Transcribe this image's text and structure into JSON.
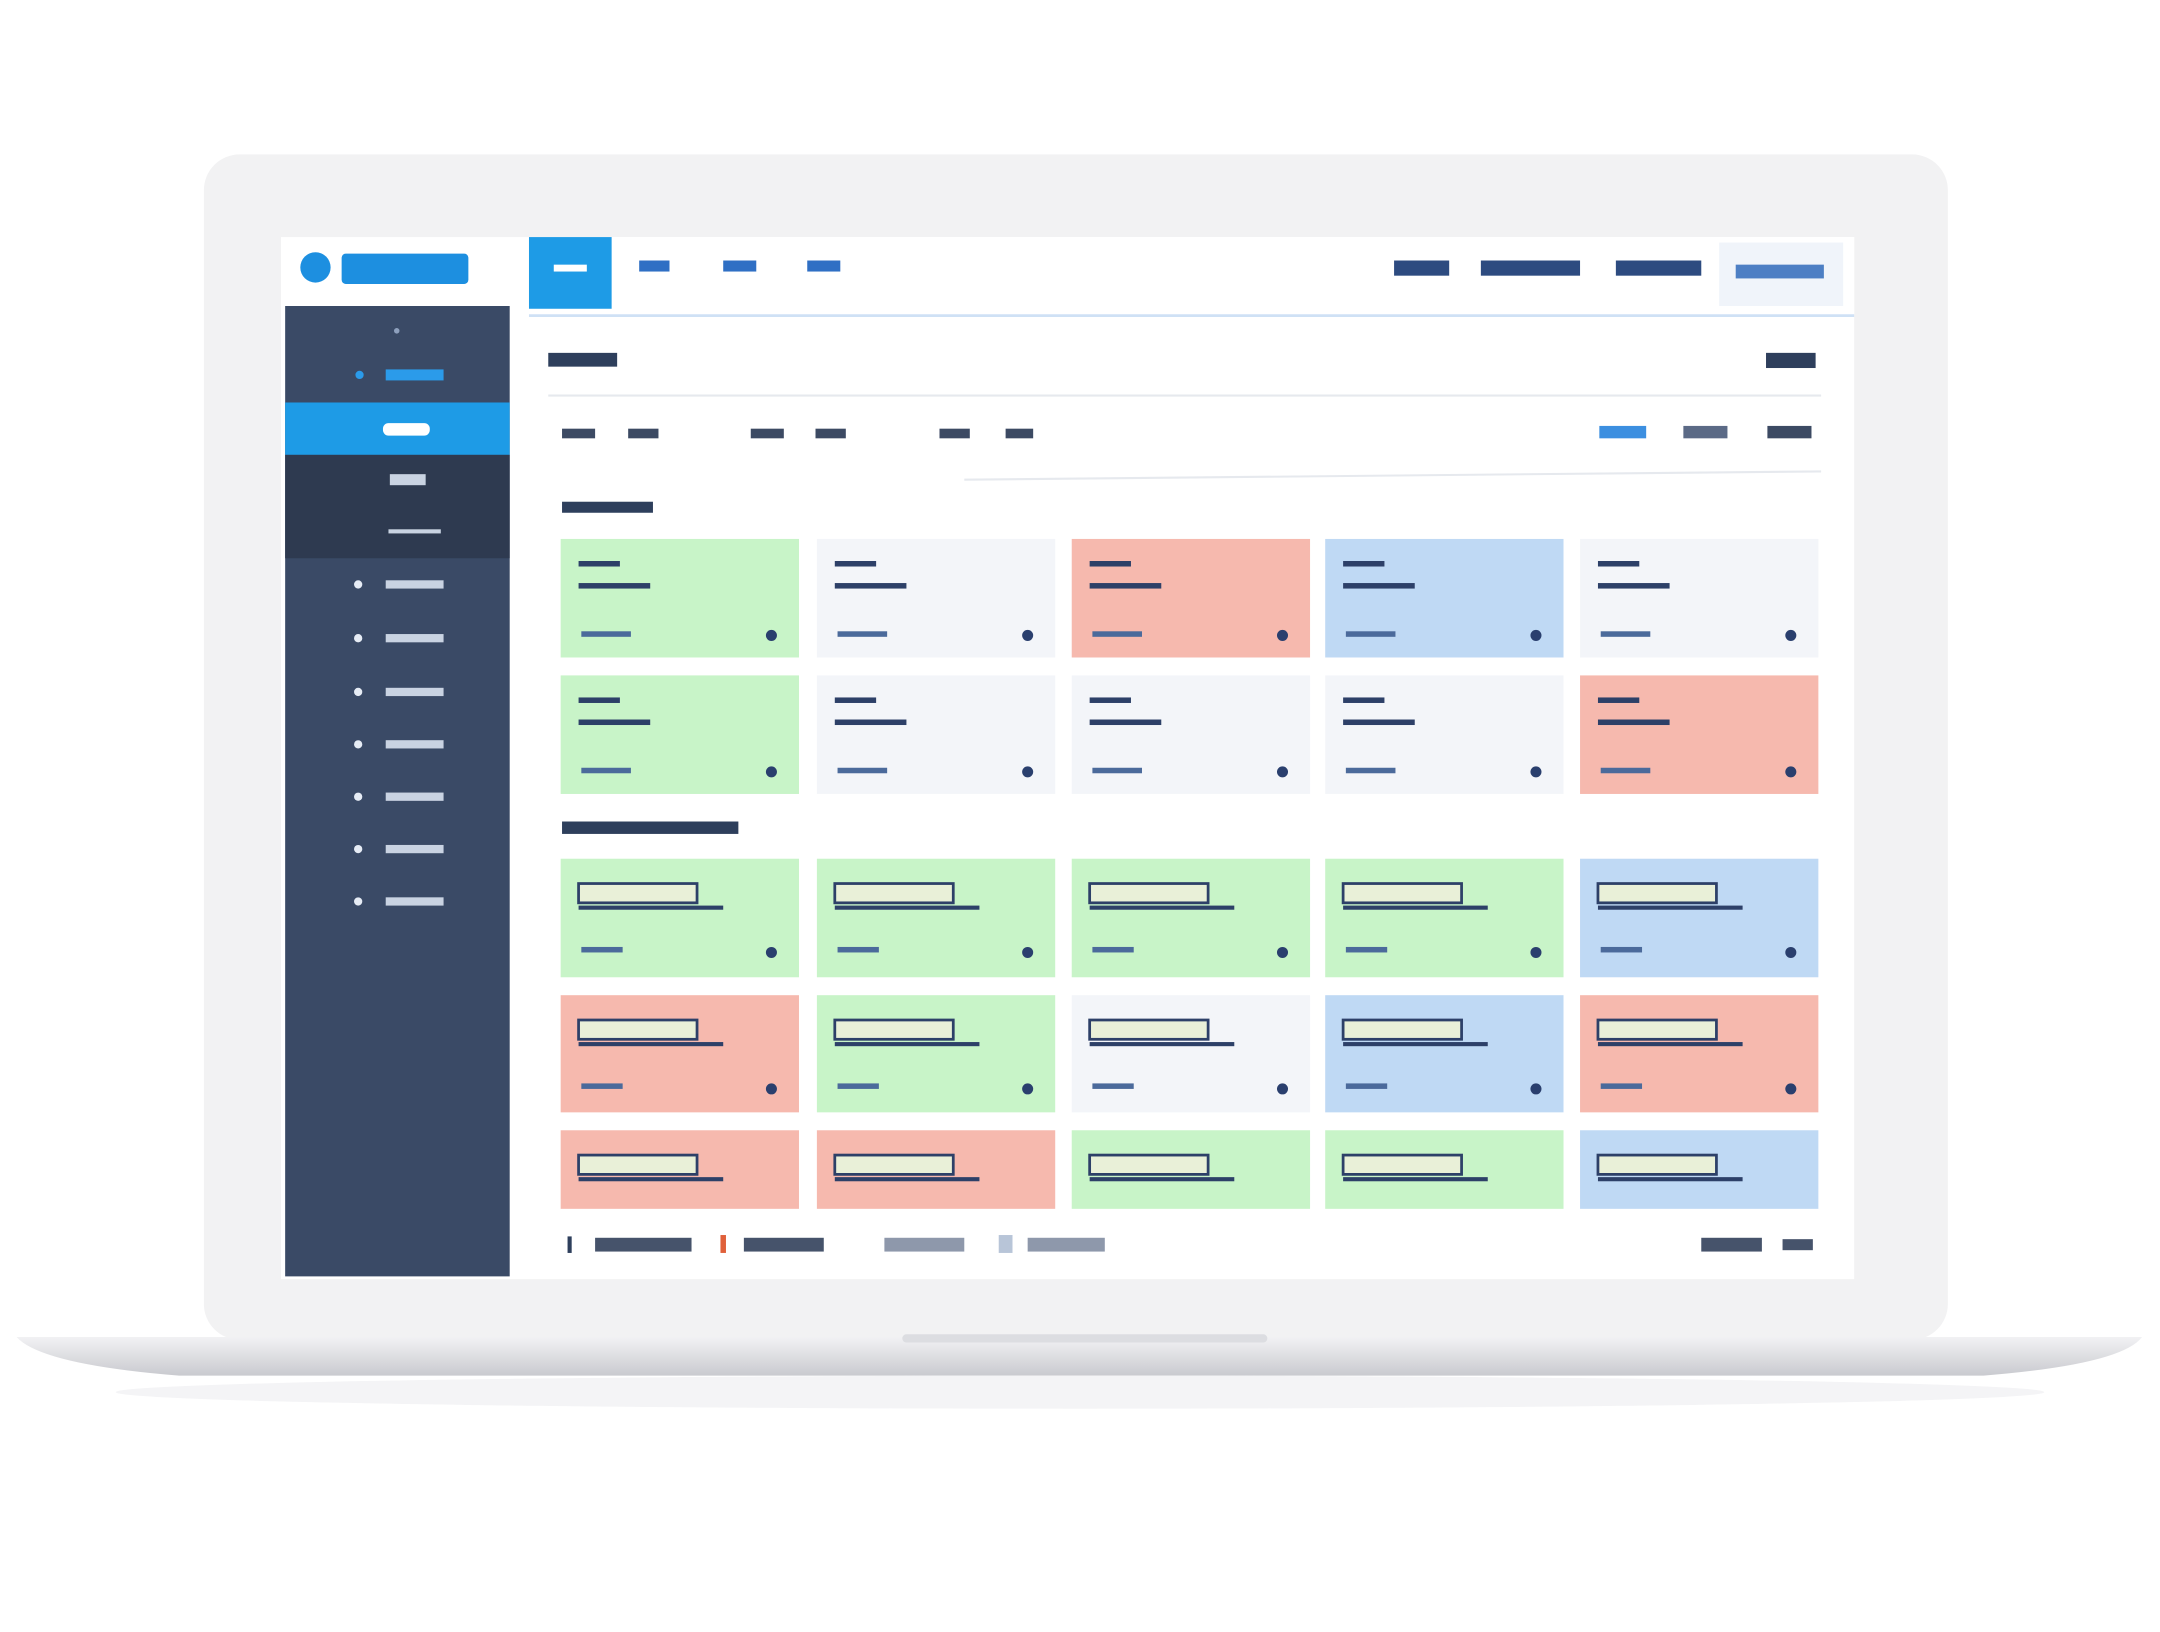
{
  "tile_grids": [
    {
      "colors": [
        "#c8f4c8",
        "#f3f5f9",
        "#f6b9ae",
        "#bfd9f4",
        "#f3f5f9",
        "#c8f4c8",
        "#f3f5f9",
        "#f3f5f9",
        "#f3f5f9",
        "#f6b9ae"
      ]
    },
    {
      "colors": [
        "#c8f4c8",
        "#c8f4c8",
        "#c8f4c8",
        "#c8f4c8",
        "#bfd9f4",
        "#f6b9ae",
        "#c8f4c8",
        "#f3f5f9",
        "#bfd9f4",
        "#f6b9ae",
        "#f6b9ae",
        "#f6b9ae",
        "#c8f4c8",
        "#c8f4c8",
        "#bfd9f4"
      ]
    }
  ]
}
